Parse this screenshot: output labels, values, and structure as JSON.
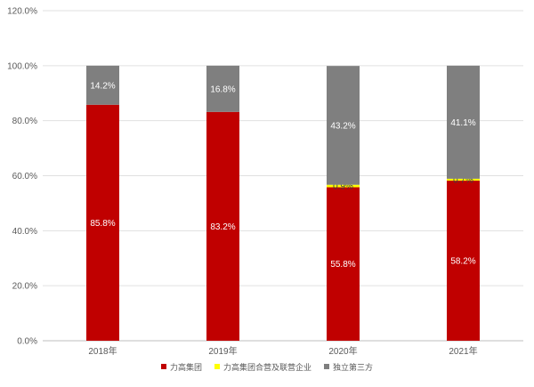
{
  "chart_data": {
    "type": "bar",
    "stacked": true,
    "title": "",
    "xlabel": "",
    "ylabel": "",
    "ylim": [
      0,
      120
    ],
    "yticks": [
      "0.0%",
      "20.0%",
      "40.0%",
      "60.0%",
      "80.0%",
      "100.0%",
      "120.0%"
    ],
    "categories": [
      "2018年",
      "2019年",
      "2020年",
      "2021年"
    ],
    "grid": true,
    "legend_position": "bottom",
    "series": [
      {
        "name": "力高集团",
        "color": "#c00000",
        "values": [
          85.8,
          83.2,
          55.8,
          58.2
        ],
        "labels": [
          "85.8%",
          "83.2%",
          "55.8%",
          "58.2%"
        ]
      },
      {
        "name": "力高集团合营及联营企业",
        "color": "#ffff00",
        "values": [
          0,
          0,
          0.9,
          0.7
        ],
        "labels": [
          "",
          "",
          "0.9%",
          "0.7%"
        ]
      },
      {
        "name": "独立第三方",
        "color": "#7f7f7f",
        "values": [
          14.2,
          16.8,
          43.2,
          41.1
        ],
        "labels": [
          "14.2%",
          "16.8%",
          "43.2%",
          "41.1%"
        ]
      }
    ]
  }
}
